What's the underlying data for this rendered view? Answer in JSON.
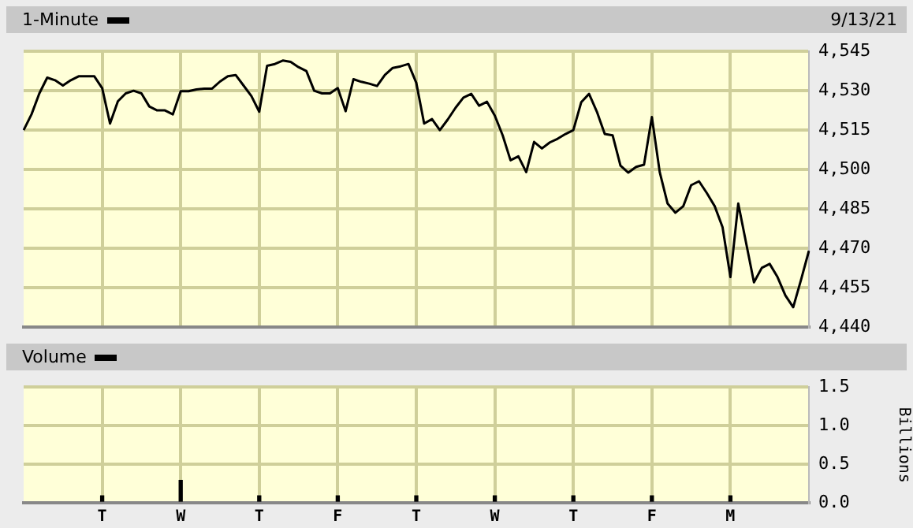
{
  "chart_data": [
    {
      "type": "line",
      "legend": "top left",
      "grid": true,
      "tick_labels": "y",
      "marker": "none",
      "line_style": "solid",
      "annotations": [
        "9/13/21"
      ],
      "categories": [
        null,
        null,
        null,
        null,
        null,
        null,
        null,
        null,
        null,
        null,
        null,
        null,
        null,
        null,
        null,
        null,
        null,
        null,
        null,
        null,
        null,
        null,
        null,
        null,
        null,
        null,
        null,
        null,
        null,
        null,
        null,
        null,
        null,
        null,
        null,
        null,
        null,
        null,
        null,
        null,
        null,
        null,
        null,
        null,
        null,
        null,
        null,
        null,
        null,
        null,
        null,
        null,
        null,
        null,
        null,
        null,
        null,
        null,
        null,
        null,
        null,
        null,
        null,
        null,
        null,
        null,
        null,
        null,
        null,
        null,
        null,
        null,
        null,
        null,
        null,
        null,
        null,
        null,
        null,
        null,
        null,
        null,
        null,
        null,
        null,
        null,
        null,
        null,
        null,
        null,
        null,
        null,
        null,
        null,
        null,
        null,
        null,
        null,
        null,
        null,
        null
      ],
      "ylim": [
        4440,
        4545
      ],
      "yticks": [
        {
          "value": 4440,
          "label": "4,440"
        },
        {
          "value": 4455,
          "label": "4,455"
        },
        {
          "value": 4470,
          "label": "4,470"
        },
        {
          "value": 4485,
          "label": "4,485"
        },
        {
          "value": 4500,
          "label": "4,500"
        },
        {
          "value": 4515,
          "label": "4,515"
        },
        {
          "value": 4530,
          "label": "4,530"
        },
        {
          "value": 4545,
          "label": "4,545"
        }
      ],
      "series": [
        {
          "name": "1-Minute",
          "color": "#000000",
          "values": [
            4515,
            4521,
            4529,
            4535,
            4534,
            4532,
            4534,
            4535.5,
            4535.5,
            4535.5,
            4531,
            4517.5,
            4526,
            4529,
            4530,
            4529,
            4524,
            4522.5,
            4522.5,
            4521,
            4529.8,
            4529.8,
            4530.5,
            4530.8,
            4530.8,
            4533.5,
            4535.5,
            4536,
            4532,
            4528,
            4522,
            4539.5,
            4540.2,
            4541.5,
            4541,
            4539,
            4537.5,
            4530,
            4529,
            4529,
            4531,
            4522.2,
            4534.4,
            4533.4,
            4532.7,
            4531.8,
            4536,
            4538.7,
            4539.3,
            4540.2,
            4533,
            4517.5,
            4519.2,
            4515,
            4519,
            4523.5,
            4527.4,
            4528.8,
            4524.3,
            4525.8,
            4520.5,
            4513,
            4503.5,
            4505,
            4499,
            4510.5,
            4508,
            4510.3,
            4511.7,
            4513.5,
            4515,
            4525.6,
            4528.8,
            4522,
            4513.5,
            4513,
            4501.5,
            4498.8,
            4501,
            4501.8,
            4520,
            4499,
            4487,
            4483.5,
            4486,
            4494,
            4495.5,
            4491,
            4486,
            4478,
            4459,
            4487,
            4472,
            4457,
            4462.5,
            4464,
            4459,
            4452,
            4447.5,
            4458,
            4469
          ]
        }
      ]
    },
    {
      "type": "bar",
      "legend": "top left",
      "grid": true,
      "ylabel": "Billions",
      "categories": [
        null,
        null,
        null,
        null,
        null,
        null,
        null,
        null,
        null,
        null,
        "T",
        null,
        null,
        null,
        null,
        null,
        null,
        null,
        null,
        null,
        "W",
        null,
        null,
        null,
        null,
        null,
        null,
        null,
        null,
        null,
        "T",
        null,
        null,
        null,
        null,
        null,
        null,
        null,
        null,
        null,
        "F",
        null,
        null,
        null,
        null,
        null,
        null,
        null,
        null,
        null,
        "T",
        null,
        null,
        null,
        null,
        null,
        null,
        null,
        null,
        null,
        "W",
        null,
        null,
        null,
        null,
        null,
        null,
        null,
        null,
        null,
        "T",
        null,
        null,
        null,
        null,
        null,
        null,
        null,
        null,
        null,
        "F",
        null,
        null,
        null,
        null,
        null,
        null,
        null,
        null,
        null,
        "M",
        null,
        null,
        null,
        null,
        null,
        null,
        null,
        null,
        null,
        null
      ],
      "ylim": [
        0,
        1.5
      ],
      "yticks": [
        {
          "value": 0,
          "label": "0.0"
        },
        {
          "value": 0.5,
          "label": "0.5"
        },
        {
          "value": 1,
          "label": "1.0"
        },
        {
          "value": 1.5,
          "label": "1.5"
        }
      ],
      "series": [
        {
          "name": "Volume",
          "color": "#000000",
          "values": [
            null,
            null,
            null,
            null,
            null,
            null,
            null,
            null,
            null,
            null,
            0.09,
            null,
            null,
            null,
            null,
            null,
            null,
            null,
            null,
            null,
            0.29,
            null,
            null,
            null,
            null,
            null,
            null,
            null,
            null,
            null,
            0.09,
            null,
            null,
            null,
            null,
            null,
            null,
            null,
            null,
            null,
            0.09,
            null,
            null,
            null,
            null,
            null,
            null,
            null,
            null,
            null,
            0.09,
            null,
            null,
            null,
            null,
            null,
            null,
            null,
            null,
            null,
            0.09,
            null,
            null,
            null,
            null,
            null,
            null,
            null,
            null,
            null,
            0.09,
            null,
            null,
            null,
            null,
            null,
            null,
            null,
            null,
            null,
            0.09,
            null,
            null,
            null,
            null,
            null,
            null,
            null,
            null,
            null,
            0.09,
            null,
            null,
            null,
            null,
            null,
            null,
            null,
            null,
            null,
            null
          ]
        }
      ]
    }
  ]
}
